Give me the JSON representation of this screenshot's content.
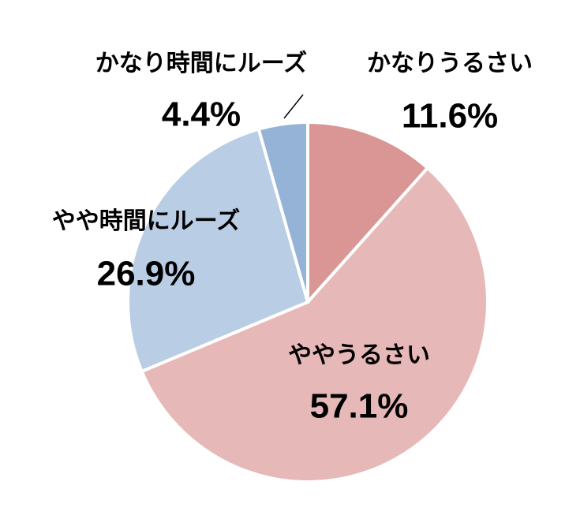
{
  "chart_data": {
    "type": "pie",
    "categories": [
      "かなりうるさい",
      "ややうるさい",
      "やや時間にルーズ",
      "かなり時間にルーズ"
    ],
    "values": [
      11.6,
      57.1,
      26.9,
      4.4
    ],
    "value_labels": [
      "11.6%",
      "57.1%",
      "26.9%",
      "4.4%"
    ],
    "colors": [
      "#d99694",
      "#e6b9b8",
      "#b9cde5",
      "#95b3d7"
    ]
  }
}
